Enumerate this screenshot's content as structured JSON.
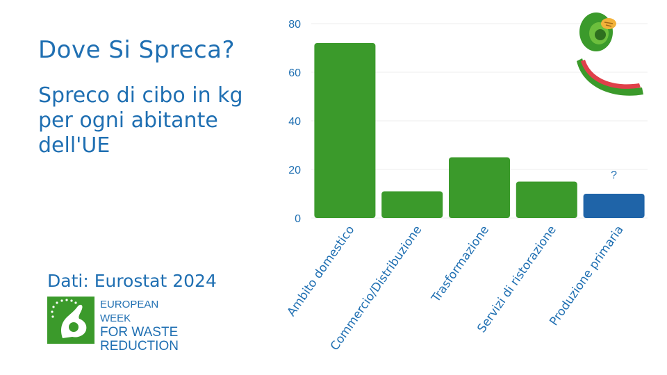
{
  "title": "Dove Si Spreca?",
  "subtitle": "Spreco di cibo in kg per ogni abitante dell'UE",
  "source": "Dati: Eurostat 2024",
  "logo": {
    "line1": "EUROPEAN WEEK",
    "line2": "FOR WASTE",
    "line3": "REDUCTION"
  },
  "colors": {
    "bar_green": "#3b9a2b",
    "bar_blue": "#1f64a8",
    "text_blue": "#1f6fb2"
  },
  "chart_data": {
    "type": "bar",
    "categories": [
      "Ambito domestico",
      "Commercio/Distribuzione",
      "Trasformazione",
      "Servizi di ristorazione",
      "Produzione primaria"
    ],
    "values": [
      72,
      11,
      25,
      15,
      10
    ],
    "bar_colors": [
      "#3b9a2b",
      "#3b9a2b",
      "#3b9a2b",
      "#3b9a2b",
      "#1f64a8"
    ],
    "annotations": [
      {
        "category": "Produzione primaria",
        "text": "?"
      }
    ],
    "ylim": [
      0,
      80
    ],
    "yticks": [
      0,
      20,
      40,
      60,
      80
    ],
    "grid": true
  }
}
